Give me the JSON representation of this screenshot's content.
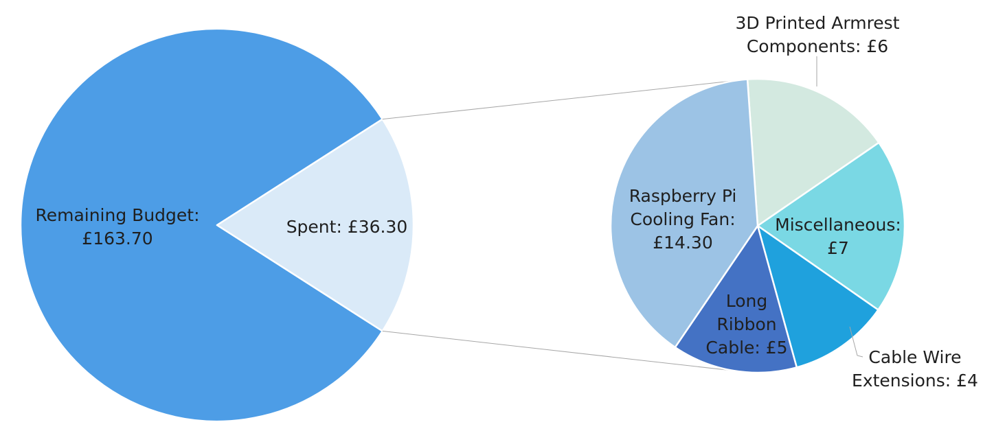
{
  "chart_data": [
    {
      "type": "pie",
      "title": "",
      "slices": [
        {
          "lines": [
            "Remaining Budget:",
            "£163.70"
          ],
          "value": 163.7,
          "color": "#4d9de6"
        },
        {
          "lines": [
            "Spent: £36.30"
          ],
          "value": 36.3,
          "color": "#daeaf8"
        }
      ]
    },
    {
      "type": "pie",
      "title": "",
      "slices": [
        {
          "lines": [
            "3D Printed Armrest",
            "Components: £6"
          ],
          "value": 6,
          "color": "#d3e9e0"
        },
        {
          "lines": [
            "Miscellaneous:",
            "£7"
          ],
          "value": 7,
          "color": "#7ad8e4"
        },
        {
          "lines": [
            "Cable Wire",
            "Extensions: £4"
          ],
          "value": 4,
          "color": "#1fa1dd"
        },
        {
          "lines": [
            "Long",
            "Ribbon",
            "Cable: £5"
          ],
          "value": 5,
          "color": "#4472c4"
        },
        {
          "lines": [
            "Raspberry Pi",
            "Cooling Fan:",
            "£14.30"
          ],
          "value": 14.3,
          "color": "#9cc3e5"
        }
      ]
    }
  ]
}
